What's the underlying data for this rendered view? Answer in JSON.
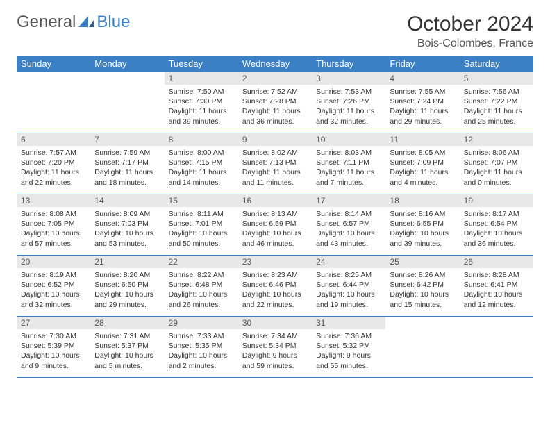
{
  "logo": {
    "text1": "General",
    "text2": "Blue"
  },
  "title": "October 2024",
  "location": "Bois-Colombes, France",
  "colors": {
    "header_bg": "#3b7fc4",
    "header_text": "#ffffff",
    "daynum_bg": "#e8e8e8",
    "border": "#3b7fc4",
    "logo_gray": "#555555",
    "logo_blue": "#3b7fc4"
  },
  "weekdays": [
    "Sunday",
    "Monday",
    "Tuesday",
    "Wednesday",
    "Thursday",
    "Friday",
    "Saturday"
  ],
  "weeks": [
    [
      null,
      null,
      {
        "n": "1",
        "sr": "7:50 AM",
        "ss": "7:30 PM",
        "dl": "11 hours and 39 minutes."
      },
      {
        "n": "2",
        "sr": "7:52 AM",
        "ss": "7:28 PM",
        "dl": "11 hours and 36 minutes."
      },
      {
        "n": "3",
        "sr": "7:53 AM",
        "ss": "7:26 PM",
        "dl": "11 hours and 32 minutes."
      },
      {
        "n": "4",
        "sr": "7:55 AM",
        "ss": "7:24 PM",
        "dl": "11 hours and 29 minutes."
      },
      {
        "n": "5",
        "sr": "7:56 AM",
        "ss": "7:22 PM",
        "dl": "11 hours and 25 minutes."
      }
    ],
    [
      {
        "n": "6",
        "sr": "7:57 AM",
        "ss": "7:20 PM",
        "dl": "11 hours and 22 minutes."
      },
      {
        "n": "7",
        "sr": "7:59 AM",
        "ss": "7:17 PM",
        "dl": "11 hours and 18 minutes."
      },
      {
        "n": "8",
        "sr": "8:00 AM",
        "ss": "7:15 PM",
        "dl": "11 hours and 14 minutes."
      },
      {
        "n": "9",
        "sr": "8:02 AM",
        "ss": "7:13 PM",
        "dl": "11 hours and 11 minutes."
      },
      {
        "n": "10",
        "sr": "8:03 AM",
        "ss": "7:11 PM",
        "dl": "11 hours and 7 minutes."
      },
      {
        "n": "11",
        "sr": "8:05 AM",
        "ss": "7:09 PM",
        "dl": "11 hours and 4 minutes."
      },
      {
        "n": "12",
        "sr": "8:06 AM",
        "ss": "7:07 PM",
        "dl": "11 hours and 0 minutes."
      }
    ],
    [
      {
        "n": "13",
        "sr": "8:08 AM",
        "ss": "7:05 PM",
        "dl": "10 hours and 57 minutes."
      },
      {
        "n": "14",
        "sr": "8:09 AM",
        "ss": "7:03 PM",
        "dl": "10 hours and 53 minutes."
      },
      {
        "n": "15",
        "sr": "8:11 AM",
        "ss": "7:01 PM",
        "dl": "10 hours and 50 minutes."
      },
      {
        "n": "16",
        "sr": "8:13 AM",
        "ss": "6:59 PM",
        "dl": "10 hours and 46 minutes."
      },
      {
        "n": "17",
        "sr": "8:14 AM",
        "ss": "6:57 PM",
        "dl": "10 hours and 43 minutes."
      },
      {
        "n": "18",
        "sr": "8:16 AM",
        "ss": "6:55 PM",
        "dl": "10 hours and 39 minutes."
      },
      {
        "n": "19",
        "sr": "8:17 AM",
        "ss": "6:54 PM",
        "dl": "10 hours and 36 minutes."
      }
    ],
    [
      {
        "n": "20",
        "sr": "8:19 AM",
        "ss": "6:52 PM",
        "dl": "10 hours and 32 minutes."
      },
      {
        "n": "21",
        "sr": "8:20 AM",
        "ss": "6:50 PM",
        "dl": "10 hours and 29 minutes."
      },
      {
        "n": "22",
        "sr": "8:22 AM",
        "ss": "6:48 PM",
        "dl": "10 hours and 26 minutes."
      },
      {
        "n": "23",
        "sr": "8:23 AM",
        "ss": "6:46 PM",
        "dl": "10 hours and 22 minutes."
      },
      {
        "n": "24",
        "sr": "8:25 AM",
        "ss": "6:44 PM",
        "dl": "10 hours and 19 minutes."
      },
      {
        "n": "25",
        "sr": "8:26 AM",
        "ss": "6:42 PM",
        "dl": "10 hours and 15 minutes."
      },
      {
        "n": "26",
        "sr": "8:28 AM",
        "ss": "6:41 PM",
        "dl": "10 hours and 12 minutes."
      }
    ],
    [
      {
        "n": "27",
        "sr": "7:30 AM",
        "ss": "5:39 PM",
        "dl": "10 hours and 9 minutes."
      },
      {
        "n": "28",
        "sr": "7:31 AM",
        "ss": "5:37 PM",
        "dl": "10 hours and 5 minutes."
      },
      {
        "n": "29",
        "sr": "7:33 AM",
        "ss": "5:35 PM",
        "dl": "10 hours and 2 minutes."
      },
      {
        "n": "30",
        "sr": "7:34 AM",
        "ss": "5:34 PM",
        "dl": "9 hours and 59 minutes."
      },
      {
        "n": "31",
        "sr": "7:36 AM",
        "ss": "5:32 PM",
        "dl": "9 hours and 55 minutes."
      },
      null,
      null
    ]
  ],
  "labels": {
    "sunrise": "Sunrise: ",
    "sunset": "Sunset: ",
    "daylight": "Daylight: "
  }
}
